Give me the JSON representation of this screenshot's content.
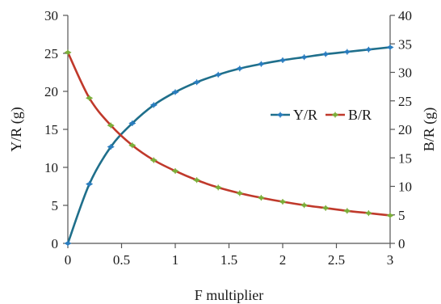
{
  "chart_data": {
    "type": "line",
    "xlabel": "F multiplier",
    "ylabel_left": "Y/R (g)",
    "ylabel_right": "B/R (g)",
    "xlim": [
      0,
      3
    ],
    "ylim_left": [
      0,
      30
    ],
    "ylim_right": [
      0,
      40
    ],
    "x_ticks": [
      "0",
      "0.5",
      "1",
      "1.5",
      "2",
      "2.5",
      "3"
    ],
    "y_left_ticks": [
      "0",
      "5",
      "10",
      "15",
      "20",
      "25",
      "30"
    ],
    "y_right_ticks": [
      "0",
      "5",
      "10",
      "15",
      "20",
      "25",
      "30",
      "35",
      "40"
    ],
    "grid": false,
    "legend_position": "right",
    "series": [
      {
        "name": "Y/R",
        "axis": "left",
        "color": "#1f6f8b",
        "marker_color": "#2a7dbf",
        "x": [
          0,
          0.2,
          0.4,
          0.6,
          0.8,
          1.0,
          1.2,
          1.4,
          1.6,
          1.8,
          2.0,
          2.2,
          2.4,
          2.6,
          2.8,
          3.0
        ],
        "values": [
          0,
          7.8,
          12.7,
          15.8,
          18.2,
          19.9,
          21.2,
          22.2,
          23.0,
          23.6,
          24.1,
          24.5,
          24.9,
          25.2,
          25.5,
          25.8
        ]
      },
      {
        "name": "B/R",
        "axis": "right",
        "color": "#c0392b",
        "marker_color": "#7cae3a",
        "x": [
          0,
          0.2,
          0.4,
          0.6,
          0.8,
          1.0,
          1.2,
          1.4,
          1.6,
          1.8,
          2.0,
          2.2,
          2.4,
          2.6,
          2.8,
          3.0
        ],
        "values": [
          33.5,
          25.5,
          20.7,
          17.2,
          14.6,
          12.7,
          11.1,
          9.8,
          8.8,
          8.0,
          7.3,
          6.7,
          6.2,
          5.7,
          5.3,
          4.9
        ]
      }
    ]
  }
}
